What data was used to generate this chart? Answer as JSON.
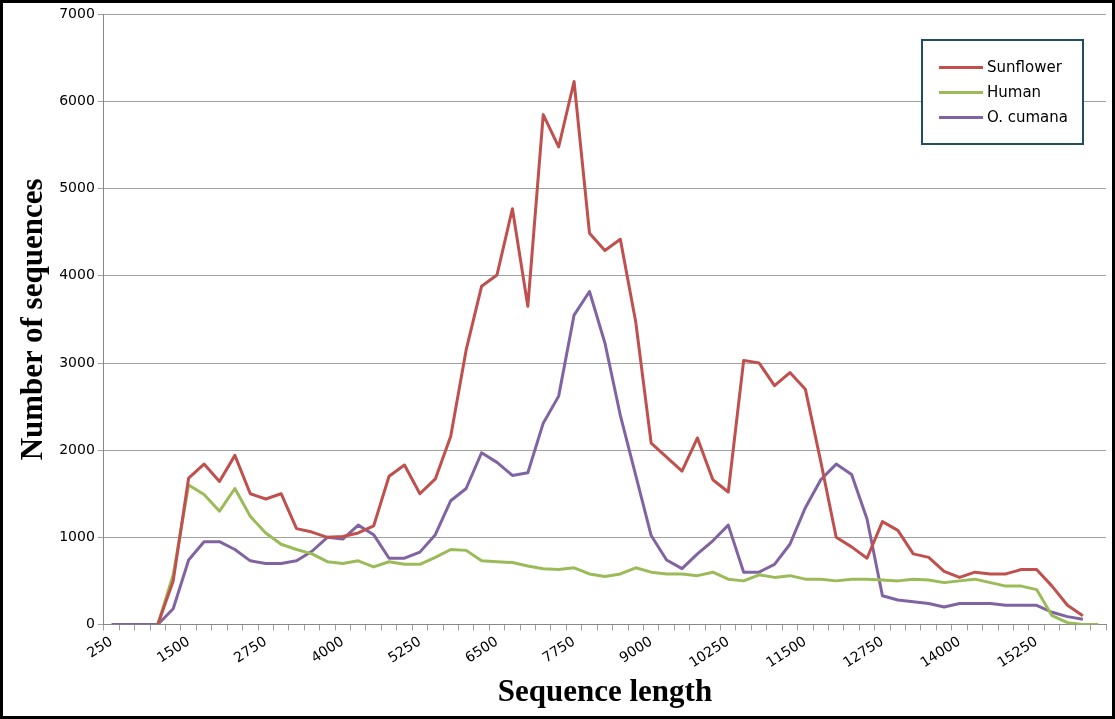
{
  "chart_data": {
    "type": "line",
    "xlabel": "Sequence length",
    "ylabel": "Number of sequences",
    "categories": [
      "250",
      null,
      null,
      null,
      null,
      "1500",
      null,
      null,
      null,
      null,
      "2750",
      null,
      null,
      null,
      null,
      "4000",
      null,
      null,
      null,
      null,
      "5250",
      null,
      null,
      null,
      null,
      "6500",
      null,
      null,
      null,
      null,
      "7750",
      null,
      null,
      null,
      null,
      "9000",
      null,
      null,
      null,
      null,
      "10250",
      null,
      null,
      null,
      null,
      "11500",
      null,
      null,
      null,
      null,
      "12750",
      null,
      null,
      null,
      null,
      "14000",
      null,
      null,
      null,
      null,
      "15250",
      null,
      null,
      null,
      null
    ],
    "series": [
      {
        "name": "Sunflower",
        "color": "#c0504d",
        "values": [
          null,
          null,
          null,
          0,
          500,
          1680,
          1840,
          1640,
          1940,
          1500,
          1440,
          1500,
          1100,
          1060,
          1000,
          1010,
          1050,
          1130,
          1700,
          1830,
          1500,
          1670,
          2160,
          3150,
          3880,
          4010,
          4770,
          3650,
          5850,
          5480,
          6230,
          4490,
          4290,
          4420,
          3470,
          2080,
          1920,
          1760,
          2140,
          1660,
          1520,
          3030,
          3000,
          2740,
          2890,
          2700,
          1870,
          1000,
          890,
          760,
          1180,
          1080,
          810,
          770,
          610,
          540,
          600,
          580,
          580,
          630,
          630,
          440,
          220,
          100,
          null
        ]
      },
      {
        "name": "Human",
        "color": "#9bbb59",
        "values": [
          null,
          null,
          null,
          0,
          570,
          1600,
          1490,
          1300,
          1560,
          1240,
          1050,
          920,
          860,
          810,
          720,
          700,
          730,
          660,
          720,
          690,
          690,
          770,
          860,
          850,
          730,
          720,
          710,
          670,
          640,
          630,
          650,
          580,
          550,
          580,
          650,
          600,
          580,
          580,
          560,
          600,
          520,
          500,
          570,
          540,
          560,
          520,
          520,
          500,
          520,
          520,
          510,
          500,
          520,
          510,
          480,
          500,
          520,
          480,
          440,
          440,
          400,
          100,
          20,
          0,
          0
        ]
      },
      {
        "name": "O. cumana",
        "color": "#8064a2",
        "values": [
          0,
          0,
          0,
          0,
          180,
          740,
          950,
          950,
          860,
          730,
          700,
          700,
          730,
          840,
          1000,
          980,
          1140,
          1030,
          760,
          760,
          830,
          1030,
          1420,
          1560,
          1970,
          1860,
          1710,
          1740,
          2310,
          2620,
          3550,
          3820,
          3230,
          2400,
          1710,
          1020,
          740,
          640,
          810,
          960,
          1140,
          600,
          600,
          690,
          920,
          1340,
          1660,
          1840,
          1720,
          1210,
          330,
          280,
          260,
          240,
          200,
          240,
          240,
          240,
          220,
          220,
          220,
          140,
          90,
          60,
          null
        ]
      }
    ],
    "ylim": [
      0,
      7000
    ],
    "yticks": [
      0,
      1000,
      2000,
      3000,
      4000,
      5000,
      6000,
      7000
    ],
    "grid": "y",
    "legend": "top right",
    "marker": "none",
    "line_style": "solid"
  }
}
